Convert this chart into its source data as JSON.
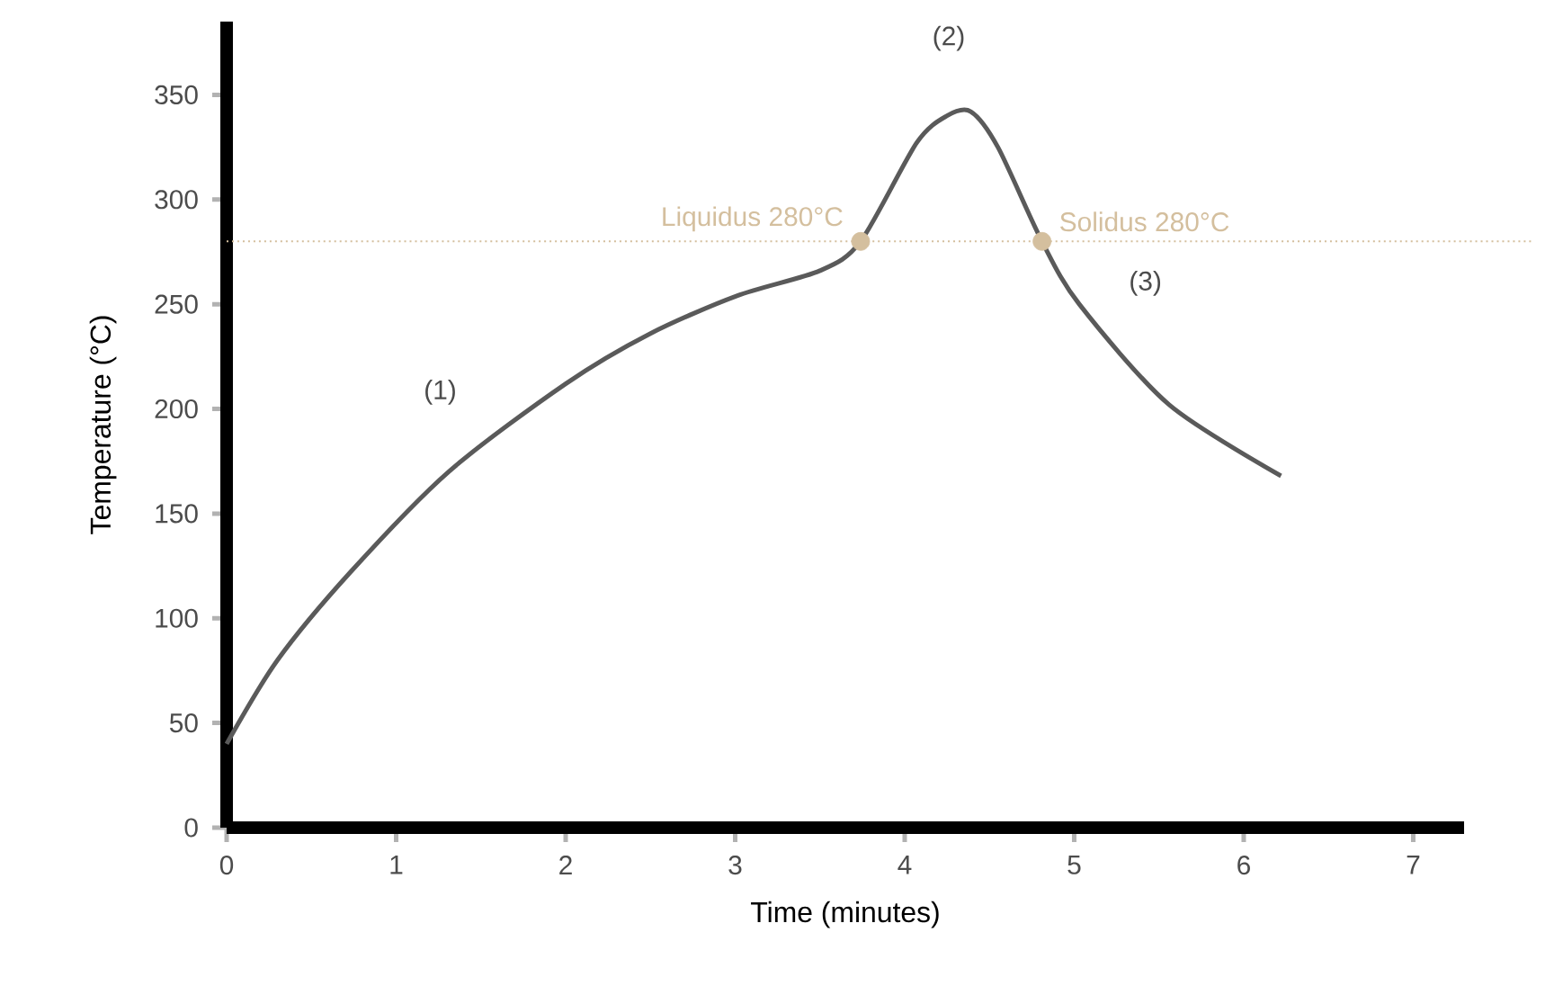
{
  "chart_data": {
    "type": "line",
    "xlabel": "Time (minutes)",
    "ylabel": "Temperature (°C)",
    "xlim": [
      0,
      7.3
    ],
    "ylim": [
      0,
      385
    ],
    "xticks": [
      0,
      1,
      2,
      3,
      4,
      5,
      6,
      7
    ],
    "yticks": [
      0,
      50,
      100,
      150,
      200,
      250,
      300,
      350
    ],
    "grid": false,
    "line_style": "solid",
    "series": [
      {
        "marker": "none",
        "color": "#5a5a5a",
        "x": [
          0,
          0.3,
          0.73,
          1.31,
          2.0,
          2.5,
          3.01,
          3.5,
          3.74,
          4.07,
          4.25,
          4.39,
          4.55,
          4.81,
          5.03,
          5.56,
          6.22
        ],
        "values": [
          40,
          80,
          122,
          170,
          212,
          236,
          254,
          266,
          280,
          327,
          340,
          342,
          325,
          280,
          250,
          202,
          168
        ]
      },
      {
        "type": "scatter",
        "marker": "circle",
        "color": "#d4bf9e",
        "x": [
          3.74,
          4.81
        ],
        "values": [
          280,
          280
        ]
      }
    ],
    "ref_lines": [
      {
        "axis": "y",
        "value": 280,
        "color": "#d4bf9e",
        "line_style": "dotted"
      }
    ],
    "annotations": [
      {
        "text": "Liquidus 280°C",
        "x": 3.74,
        "y": 280
      },
      {
        "text": "Solidus 280°C",
        "x": 4.81,
        "y": 280
      },
      "(1)",
      "(2)",
      "(3)"
    ]
  }
}
